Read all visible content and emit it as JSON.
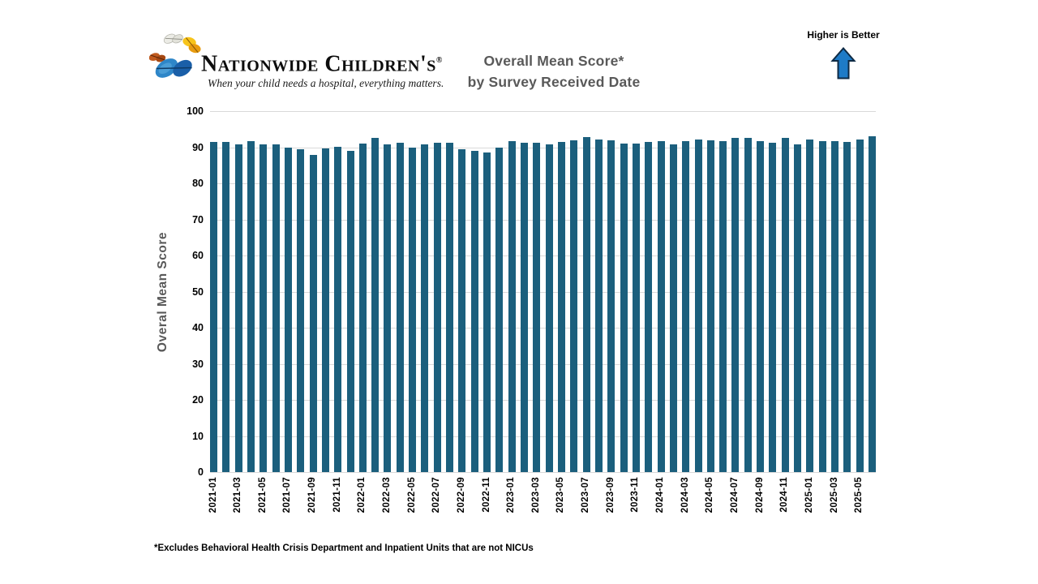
{
  "header": {
    "logo": {
      "name": "Nationwide Children's",
      "registered_mark": "®",
      "tagline": "When your child needs a hospital, everything matters."
    },
    "title_line1": "Overall Mean Score*",
    "title_line2": "by Survey Received Date",
    "higher_is_better": "Higher is Better"
  },
  "footnote": "*Excludes Behavioral Health Crisis Department and Inpatient Units that are not NICUs",
  "colors": {
    "bar": "#1B5F7D",
    "gridline": "#D9D9D9",
    "title_gray": "#595959",
    "arrow_fill": "#1E7BC7",
    "arrow_stroke": "#0E2A44",
    "logo_blue": "#2E86C8",
    "logo_blue_dark": "#1A5FA8",
    "logo_yellow": "#F7C41B",
    "logo_orange": "#C05A1E",
    "logo_white": "#ECECE6"
  },
  "chart_data": {
    "type": "bar",
    "title": "Overall Mean Score* by Survey Received Date",
    "xlabel": "",
    "ylabel": "Overal Mean Score",
    "ylim": [
      0,
      100
    ],
    "ytick_interval": 10,
    "x_label_every": 2,
    "grid": true,
    "legend_position": "none",
    "annotation": "Higher is Better",
    "categories": [
      "2021-01",
      "2021-02",
      "2021-03",
      "2021-04",
      "2021-05",
      "2021-06",
      "2021-07",
      "2021-08",
      "2021-09",
      "2021-10",
      "2021-11",
      "2021-12",
      "2022-01",
      "2022-02",
      "2022-03",
      "2022-04",
      "2022-05",
      "2022-06",
      "2022-07",
      "2022-08",
      "2022-09",
      "2022-10",
      "2022-11",
      "2022-12",
      "2023-01",
      "2023-02",
      "2023-03",
      "2023-04",
      "2023-05",
      "2023-06",
      "2023-07",
      "2023-08",
      "2023-09",
      "2023-10",
      "2023-11",
      "2023-12",
      "2024-01",
      "2024-02",
      "2024-03",
      "2024-04",
      "2024-05",
      "2024-06",
      "2024-07",
      "2024-08",
      "2024-09",
      "2024-10",
      "2024-11",
      "2024-12",
      "2025-01",
      "2025-02",
      "2025-03",
      "2025-04",
      "2025-05",
      "2025-06"
    ],
    "values": [
      91.4,
      91.4,
      90.9,
      91.7,
      90.7,
      90.7,
      89.8,
      89.4,
      87.8,
      89.6,
      90.1,
      88.9,
      91.1,
      92.5,
      90.7,
      91.3,
      89.8,
      90.9,
      91.3,
      91.2,
      89.4,
      89.0,
      88.5,
      90.0,
      91.6,
      91.3,
      91.3,
      90.8,
      91.5,
      91.9,
      92.9,
      92.2,
      91.9,
      91.1,
      91.0,
      91.5,
      91.8,
      90.9,
      91.7,
      92.1,
      92.0,
      91.7,
      92.7,
      92.5,
      91.8,
      91.3,
      92.5,
      90.9,
      92.2,
      91.6,
      91.7,
      91.5,
      92.2,
      93.0
    ]
  }
}
